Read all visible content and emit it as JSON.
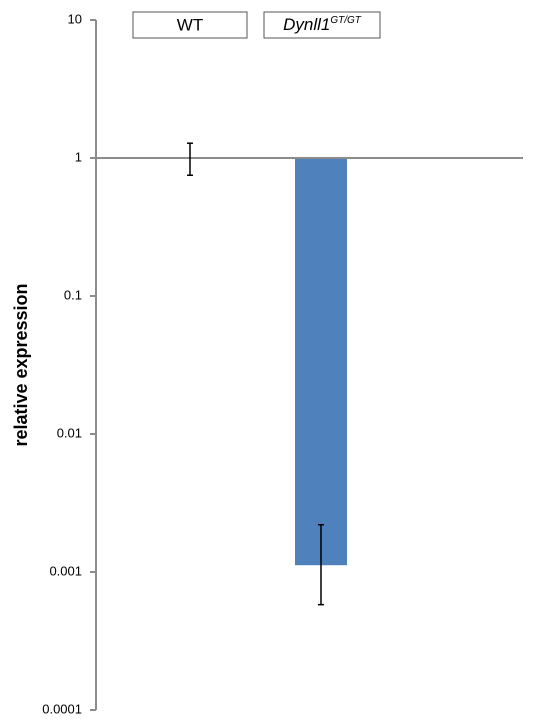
{
  "chart_data": {
    "type": "bar",
    "y_label": "relative expression",
    "categories": [
      "WT",
      {
        "base": "Dynll1",
        "superscript": "GT/GT"
      }
    ],
    "values": [
      1,
      0.00112
    ],
    "error_low": [
      0.75,
      0.00058
    ],
    "error_high": [
      1.28,
      0.0022
    ],
    "color": "#4f81bd",
    "log_scale": true,
    "x_axis_at": 1,
    "ylim": [
      0.0001,
      10
    ],
    "yticks": [
      0.0001,
      0.001,
      0.01,
      0.1,
      1,
      10
    ]
  }
}
